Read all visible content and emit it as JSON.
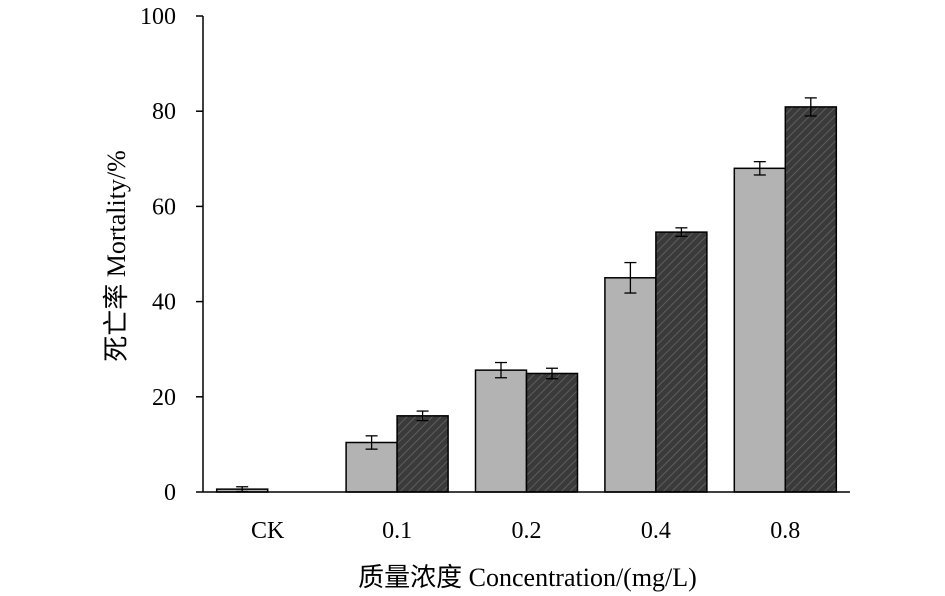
{
  "chart_data": {
    "type": "bar",
    "categories": [
      "CK",
      "0.1",
      "0.2",
      "0.4",
      "0.8"
    ],
    "series": [
      {
        "values": [
          0.6,
          10.4,
          25.6,
          45.0,
          68.0
        ],
        "errors": [
          0.5,
          1.4,
          1.6,
          3.2,
          1.4
        ],
        "fill": "#b3b3b3",
        "pattern": "solid"
      },
      {
        "values": [
          null,
          16.0,
          24.9,
          54.6,
          80.9
        ],
        "errors": [
          0,
          1.0,
          1.1,
          0.9,
          1.9
        ],
        "fill": "#3a3a3a",
        "pattern": "diagonal-hatch"
      }
    ],
    "ylim": [
      0,
      100
    ],
    "yticks": [
      "0",
      "20",
      "40",
      "60",
      "80",
      "100"
    ],
    "xlabel": "质量浓度 Concentration/(mg/L)",
    "ylabel": "死亡率 Mortality/%",
    "grid": false,
    "legend": "none"
  }
}
